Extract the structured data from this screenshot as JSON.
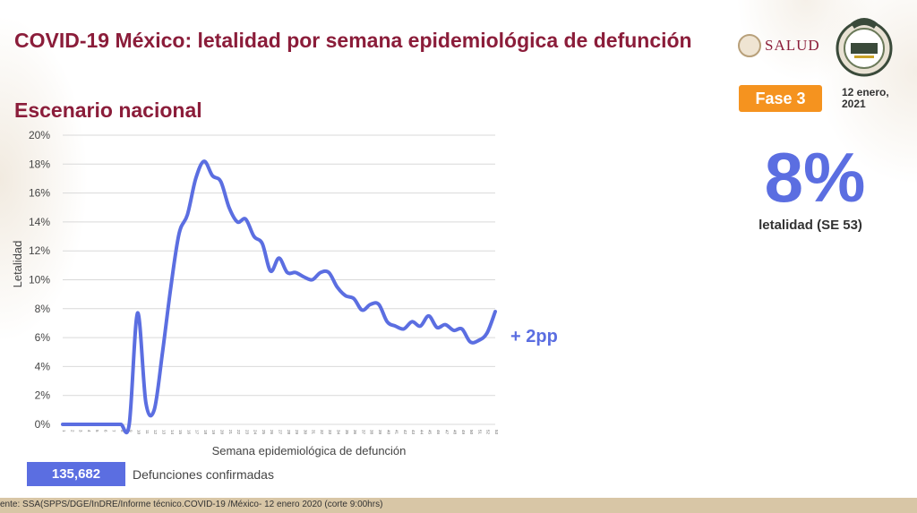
{
  "header": {
    "title": "COVID-19 México: letalidad por semana epidemiológica de defunción",
    "subtitle": "Escenario nacional",
    "salud_logo": "SALUD",
    "phase_badge": "Fase 3",
    "date": "12 enero, 2021"
  },
  "kpi": {
    "value": "8%",
    "label": "letalidad (SE 53)"
  },
  "annotation": "+ 2pp",
  "defunciones": {
    "count": "135,682",
    "label": "Defunciones confirmadas"
  },
  "footer": {
    "source": "ente: SSA(SPPS/DGE/InDRE/Informe técnico.COVID-19 /México- 12 enero 2020 (corte 9:00hrs)"
  },
  "colors": {
    "title": "#8b1d3a",
    "line": "#5b6ee1",
    "badge": "#f5931f"
  },
  "chart_data": {
    "type": "line",
    "title": "",
    "xlabel": "Semana epidemiológica de defunción",
    "ylabel": "Letalidad",
    "ylim": [
      0,
      20
    ],
    "yticks": [
      0,
      2,
      4,
      6,
      8,
      10,
      12,
      14,
      16,
      18,
      20
    ],
    "ytick_labels": [
      "0%",
      "2%",
      "4%",
      "6%",
      "8%",
      "10%",
      "12%",
      "14%",
      "16%",
      "18%",
      "20%"
    ],
    "grid": true,
    "x": [
      1,
      2,
      3,
      4,
      5,
      6,
      7,
      8,
      9,
      10,
      11,
      12,
      13,
      14,
      15,
      16,
      17,
      18,
      19,
      20,
      21,
      22,
      23,
      24,
      25,
      26,
      27,
      28,
      29,
      30,
      31,
      32,
      33,
      34,
      35,
      36,
      37,
      38,
      39,
      40,
      41,
      42,
      43,
      44,
      45,
      46,
      47,
      48,
      49,
      50,
      51,
      52,
      53
    ],
    "series": [
      {
        "values": [
          0,
          0,
          0,
          0,
          0,
          0,
          0,
          0,
          0,
          7.7,
          1.5,
          1.0,
          5.0,
          9.5,
          13.2,
          14.5,
          17.0,
          18.2,
          17.2,
          16.8,
          15.0,
          14.0,
          14.2,
          13.0,
          12.5,
          10.6,
          11.5,
          10.5,
          10.5,
          10.2,
          10.0,
          10.5,
          10.5,
          9.5,
          8.9,
          8.7,
          7.9,
          8.3,
          8.3,
          7.1,
          6.8,
          6.6,
          7.1,
          6.8,
          7.5,
          6.7,
          6.9,
          6.5,
          6.6,
          5.7,
          5.8,
          6.3,
          7.8
        ]
      }
    ]
  }
}
